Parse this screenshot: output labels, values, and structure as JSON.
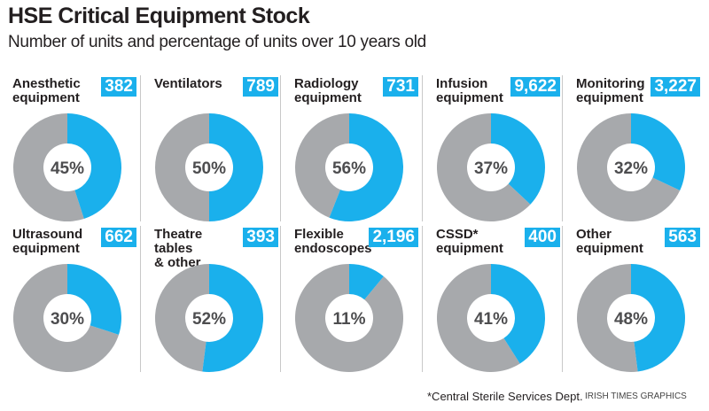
{
  "chart_data": {
    "type": "donut",
    "title": "HSE Critical Equipment Stock",
    "subtitle": "Number of units and percentage of units over 10 years old",
    "colors": {
      "over_10_years": "#1ab0ec",
      "remainder": "#a7a9ac"
    },
    "items": [
      {
        "label": "Anesthetic\nequipment",
        "units": "382",
        "pct": 45,
        "pct_label": "45%"
      },
      {
        "label": "Ventilators",
        "units": "789",
        "pct": 50,
        "pct_label": "50%"
      },
      {
        "label": "Radiology\nequipment",
        "units": "731",
        "pct": 56,
        "pct_label": "56%"
      },
      {
        "label": "Infusion\nequipment",
        "units": "9,622",
        "pct": 37,
        "pct_label": "37%"
      },
      {
        "label": "Monitoring\nequipment",
        "units": "3,227",
        "pct": 32,
        "pct_label": "32%"
      },
      {
        "label": "Ultrasound\nequipment",
        "units": "662",
        "pct": 30,
        "pct_label": "30%"
      },
      {
        "label": "Theatre tables\n& other",
        "units": "393",
        "pct": 52,
        "pct_label": "52%"
      },
      {
        "label": "Flexible\nendoscopes",
        "units": "2,196",
        "pct": 11,
        "pct_label": "11%"
      },
      {
        "label": "CSSD*\nequipment",
        "units": "400",
        "pct": 41,
        "pct_label": "41%"
      },
      {
        "label": "Other\nequipment",
        "units": "563",
        "pct": 48,
        "pct_label": "48%"
      }
    ],
    "footnote": "*Central Sterile Services Dept.",
    "credit": "IRISH TIMES GRAPHICS"
  }
}
